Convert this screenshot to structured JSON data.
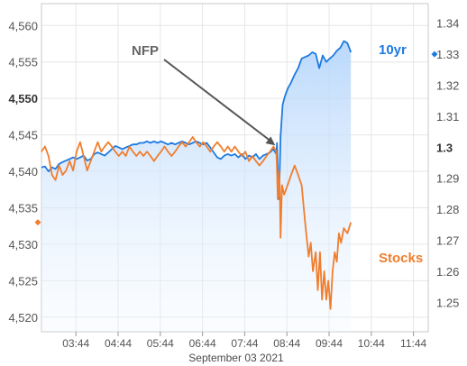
{
  "chart_data": {
    "type": "line",
    "xlabel": "September 03 2021",
    "x_ticks": [
      "03:44",
      "04:44",
      "05:44",
      "06:44",
      "07:44",
      "08:44",
      "09:44",
      "10:44",
      "11:44"
    ],
    "x_range": [
      "02:55",
      "12:05"
    ],
    "y_left": {
      "ticks": [
        "4,520",
        "4,525",
        "4,530",
        "4,535",
        "4,540",
        "4,545",
        "4,550",
        "4,555",
        "4,560"
      ],
      "bold_tick": "4,550",
      "range": [
        4518,
        4563
      ]
    },
    "y_right": {
      "ticks": [
        "1.25",
        "1.26",
        "1.27",
        "1.28",
        "1.29",
        "1.3",
        "1.31",
        "1.32",
        "1.33",
        "1.34"
      ],
      "bold_tick": "1.3",
      "range": [
        1.2405,
        1.3463
      ]
    },
    "annotation": {
      "text": "NFP",
      "time": "08:30"
    },
    "grid": true,
    "series": [
      {
        "name": "10yr",
        "axis": "right",
        "color": "#1e7ae0",
        "area": true,
        "last_value": 1.33,
        "points": [
          [
            "02:55",
            1.2935
          ],
          [
            "03:00",
            1.2938
          ],
          [
            "03:05",
            1.2922
          ],
          [
            "03:10",
            1.2935
          ],
          [
            "03:15",
            1.293
          ],
          [
            "03:20",
            1.2946
          ],
          [
            "03:25",
            1.2952
          ],
          [
            "03:30",
            1.2957
          ],
          [
            "03:35",
            1.2962
          ],
          [
            "03:40",
            1.2967
          ],
          [
            "03:45",
            1.2962
          ],
          [
            "03:50",
            1.2967
          ],
          [
            "03:55",
            1.2973
          ],
          [
            "04:00",
            1.2957
          ],
          [
            "04:05",
            1.2962
          ],
          [
            "04:10",
            1.2978
          ],
          [
            "04:15",
            1.2983
          ],
          [
            "04:20",
            1.2978
          ],
          [
            "04:25",
            1.2973
          ],
          [
            "04:30",
            1.2983
          ],
          [
            "04:35",
            1.2994
          ],
          [
            "04:40",
            1.3004
          ],
          [
            "04:45",
            1.2999
          ],
          [
            "04:50",
            1.2994
          ],
          [
            "04:55",
            1.2999
          ],
          [
            "05:00",
            1.3004
          ],
          [
            "05:05",
            1.3009
          ],
          [
            "05:10",
            1.3009
          ],
          [
            "05:15",
            1.3014
          ],
          [
            "05:20",
            1.3014
          ],
          [
            "05:25",
            1.3019
          ],
          [
            "05:30",
            1.3014
          ],
          [
            "05:35",
            1.3019
          ],
          [
            "05:40",
            1.3014
          ],
          [
            "05:45",
            1.3019
          ],
          [
            "05:50",
            1.3014
          ],
          [
            "05:55",
            1.3009
          ],
          [
            "06:00",
            1.3014
          ],
          [
            "06:05",
            1.3009
          ],
          [
            "06:10",
            1.3014
          ],
          [
            "06:15",
            1.3019
          ],
          [
            "06:20",
            1.3014
          ],
          [
            "06:25",
            1.3009
          ],
          [
            "06:30",
            1.3014
          ],
          [
            "06:35",
            1.3019
          ],
          [
            "06:40",
            1.3014
          ],
          [
            "06:45",
            1.3009
          ],
          [
            "06:50",
            1.3014
          ],
          [
            "06:55",
            1.2999
          ],
          [
            "07:00",
            1.2983
          ],
          [
            "07:05",
            1.2967
          ],
          [
            "07:10",
            1.2962
          ],
          [
            "07:15",
            1.2973
          ],
          [
            "07:20",
            1.2978
          ],
          [
            "07:25",
            1.2973
          ],
          [
            "07:30",
            1.2978
          ],
          [
            "07:35",
            1.2967
          ],
          [
            "07:40",
            1.2978
          ],
          [
            "07:45",
            1.2962
          ],
          [
            "07:50",
            1.2973
          ],
          [
            "07:55",
            1.2967
          ],
          [
            "08:00",
            1.2978
          ],
          [
            "08:05",
            1.2962
          ],
          [
            "08:10",
            1.2973
          ],
          [
            "08:15",
            1.2978
          ],
          [
            "08:20",
            1.2983
          ],
          [
            "08:25",
            1.2994
          ],
          [
            "08:29",
            1.2978
          ],
          [
            "08:30",
            1.3014
          ],
          [
            "08:31",
            1.2935
          ],
          [
            "08:32",
            1.2832
          ],
          [
            "08:33",
            1.2842
          ],
          [
            "08:35",
            1.3035
          ],
          [
            "08:38",
            1.3137
          ],
          [
            "08:41",
            1.3163
          ],
          [
            "08:45",
            1.3188
          ],
          [
            "08:50",
            1.3209
          ],
          [
            "08:55",
            1.3234
          ],
          [
            "09:00",
            1.3255
          ],
          [
            "09:05",
            1.3286
          ],
          [
            "09:10",
            1.3291
          ],
          [
            "09:15",
            1.3296
          ],
          [
            "09:20",
            1.3306
          ],
          [
            "09:25",
            1.3301
          ],
          [
            "09:30",
            1.3255
          ],
          [
            "09:35",
            1.3296
          ],
          [
            "09:40",
            1.3275
          ],
          [
            "09:45",
            1.3286
          ],
          [
            "09:50",
            1.3296
          ],
          [
            "09:55",
            1.3311
          ],
          [
            "10:00",
            1.3321
          ],
          [
            "10:05",
            1.3342
          ],
          [
            "10:10",
            1.3336
          ],
          [
            "10:15",
            1.3306
          ]
        ]
      },
      {
        "name": "Stocks",
        "axis": "left",
        "color": "#f07e2e",
        "area": false,
        "last_value": 4533,
        "points": [
          [
            "02:55",
            4542.7
          ],
          [
            "03:00",
            4543.4
          ],
          [
            "03:05",
            4542.1
          ],
          [
            "03:10",
            4539.5
          ],
          [
            "03:15",
            4538.8
          ],
          [
            "03:20",
            4540.8
          ],
          [
            "03:25",
            4539.5
          ],
          [
            "03:30",
            4540.1
          ],
          [
            "03:35",
            4541.4
          ],
          [
            "03:40",
            4540.1
          ],
          [
            "03:45",
            4542.7
          ],
          [
            "03:50",
            4544.0
          ],
          [
            "03:55",
            4542.1
          ],
          [
            "04:00",
            4540.1
          ],
          [
            "04:05",
            4541.4
          ],
          [
            "04:10",
            4542.7
          ],
          [
            "04:15",
            4544.0
          ],
          [
            "04:20",
            4542.7
          ],
          [
            "04:25",
            4543.4
          ],
          [
            "04:30",
            4544.0
          ],
          [
            "04:35",
            4543.4
          ],
          [
            "04:40",
            4542.7
          ],
          [
            "04:45",
            4542.1
          ],
          [
            "04:50",
            4542.7
          ],
          [
            "04:55",
            4542.1
          ],
          [
            "05:00",
            4543.4
          ],
          [
            "05:05",
            4542.7
          ],
          [
            "05:10",
            4542.1
          ],
          [
            "05:15",
            4542.7
          ],
          [
            "05:20",
            4542.1
          ],
          [
            "05:25",
            4542.7
          ],
          [
            "05:30",
            4542.1
          ],
          [
            "05:35",
            4541.4
          ],
          [
            "05:40",
            4542.1
          ],
          [
            "05:45",
            4542.7
          ],
          [
            "05:50",
            4543.4
          ],
          [
            "05:55",
            4542.7
          ],
          [
            "06:00",
            4542.1
          ],
          [
            "06:05",
            4542.7
          ],
          [
            "06:10",
            4543.4
          ],
          [
            "06:15",
            4544.0
          ],
          [
            "06:20",
            4543.4
          ],
          [
            "06:25",
            4544.0
          ],
          [
            "06:30",
            4544.7
          ],
          [
            "06:35",
            4544.0
          ],
          [
            "06:40",
            4543.4
          ],
          [
            "06:45",
            4544.0
          ],
          [
            "06:50",
            4543.4
          ],
          [
            "06:55",
            4542.7
          ],
          [
            "07:00",
            4543.4
          ],
          [
            "07:05",
            4544.0
          ],
          [
            "07:10",
            4543.4
          ],
          [
            "07:15",
            4542.7
          ],
          [
            "07:20",
            4543.4
          ],
          [
            "07:25",
            4542.7
          ],
          [
            "07:30",
            4543.4
          ],
          [
            "07:35",
            4542.7
          ],
          [
            "07:40",
            4542.1
          ],
          [
            "07:45",
            4542.7
          ],
          [
            "07:50",
            4541.4
          ],
          [
            "07:55",
            4542.1
          ],
          [
            "08:00",
            4541.4
          ],
          [
            "08:05",
            4540.8
          ],
          [
            "08:10",
            4541.4
          ],
          [
            "08:15",
            4542.1
          ],
          [
            "08:20",
            4542.7
          ],
          [
            "08:25",
            4543.4
          ],
          [
            "08:29",
            4542.7
          ],
          [
            "08:30",
            4540.1
          ],
          [
            "08:31",
            4536.2
          ],
          [
            "08:32",
            4536.8
          ],
          [
            "08:33",
            4540.1
          ],
          [
            "08:34",
            4537.5
          ],
          [
            "08:35",
            4530.9
          ],
          [
            "08:37",
            4538.1
          ],
          [
            "08:40",
            4536.8
          ],
          [
            "08:45",
            4538.1
          ],
          [
            "08:50",
            4539.5
          ],
          [
            "08:55",
            4540.8
          ],
          [
            "09:00",
            4539.5
          ],
          [
            "09:05",
            4538.1
          ],
          [
            "09:10",
            4532.9
          ],
          [
            "09:15",
            4528.3
          ],
          [
            "09:18",
            4530.2
          ],
          [
            "09:21",
            4526.3
          ],
          [
            "09:25",
            4528.9
          ],
          [
            "09:28",
            4523.7
          ],
          [
            "09:31",
            4528.9
          ],
          [
            "09:34",
            4522.4
          ],
          [
            "09:37",
            4526.3
          ],
          [
            "09:40",
            4522.4
          ],
          [
            "09:43",
            4525.0
          ],
          [
            "09:46",
            4521.1
          ],
          [
            "09:49",
            4526.3
          ],
          [
            "09:52",
            4528.9
          ],
          [
            "09:55",
            4527.6
          ],
          [
            "09:58",
            4531.5
          ],
          [
            "10:01",
            4530.2
          ],
          [
            "10:05",
            4532.2
          ],
          [
            "10:10",
            4531.5
          ],
          [
            "10:15",
            4533.0
          ]
        ]
      }
    ]
  }
}
